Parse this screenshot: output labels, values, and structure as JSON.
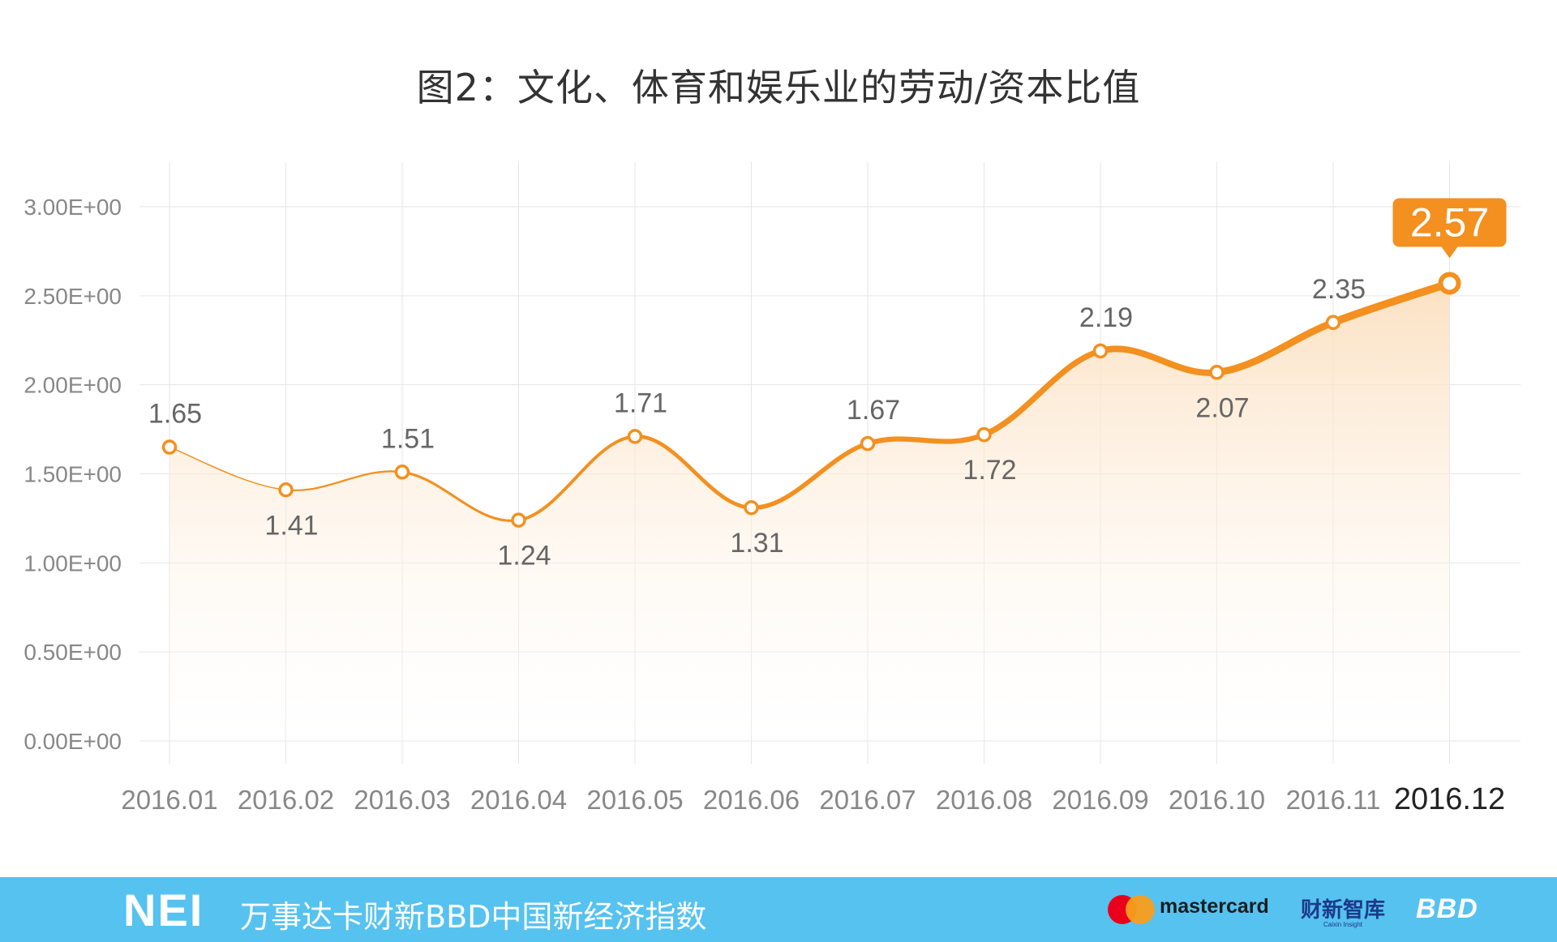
{
  "chart_data": {
    "type": "area",
    "title": "图2：文化、体育和娱乐业的劳动/资本比值",
    "categories": [
      "2016.01",
      "2016.02",
      "2016.03",
      "2016.04",
      "2016.05",
      "2016.06",
      "2016.07",
      "2016.08",
      "2016.09",
      "2016.10",
      "2016.11",
      "2016.12"
    ],
    "series": [
      {
        "values": [
          1.65,
          1.41,
          1.51,
          1.24,
          1.71,
          1.31,
          1.67,
          1.72,
          2.19,
          2.07,
          2.35,
          2.57
        ]
      }
    ],
    "data_labels": [
      "1.65",
      "1.41",
      "1.51",
      "1.24",
      "1.71",
      "1.31",
      "1.67",
      "1.72",
      "2.19",
      "2.07",
      "2.35",
      "2.57"
    ],
    "label_positions": [
      "above",
      "below",
      "above",
      "below",
      "above",
      "below",
      "above",
      "below",
      "above",
      "below",
      "above",
      "callout"
    ],
    "y_ticks": [
      0,
      0.5,
      1,
      1.5,
      2,
      2.5,
      3
    ],
    "y_tick_labels": [
      "0.00E+00",
      "0.50E+00",
      "1.00E+00",
      "1.50E+00",
      "2.00E+00",
      "2.50E+00",
      "3.00E+00"
    ],
    "ylim": [
      0,
      3
    ],
    "highlight_index": 11,
    "grid": true,
    "colors": {
      "line": "#f3901f",
      "fill": "#fce3c6",
      "grid": "#e6e6e6",
      "text": "#666666",
      "title": "#333333",
      "callout": "#f3901f"
    }
  },
  "footer": {
    "brand": "NEI",
    "index_name": "万事达卡财新BBD中国新经济指数",
    "mastercard": "mastercard",
    "caixin": "财新智库",
    "caixin_sub": "Caixin Insight",
    "bbd": "BBD",
    "color": "#56c2f0"
  }
}
